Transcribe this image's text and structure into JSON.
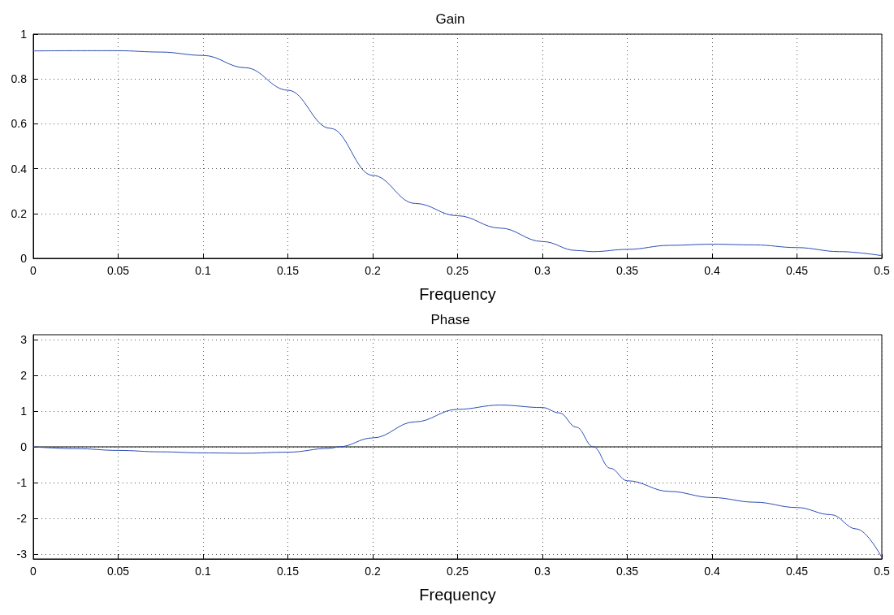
{
  "chart_data": [
    {
      "type": "line",
      "title": "Gain",
      "xlabel": "Frequency",
      "xlim": [
        0,
        0.5
      ],
      "xticks": [
        0,
        0.05,
        0.1,
        0.15,
        0.2,
        0.25,
        0.3,
        0.35,
        0.4,
        0.45,
        0.5
      ],
      "ylim": [
        0,
        1
      ],
      "yticks": [
        0,
        0.2,
        0.4,
        0.6,
        0.8,
        1
      ],
      "grid": true,
      "series": [
        {
          "color": "#2b4bb5",
          "x": [
            0,
            0.025,
            0.05,
            0.075,
            0.1,
            0.125,
            0.15,
            0.175,
            0.2,
            0.225,
            0.25,
            0.275,
            0.3,
            0.32,
            0.33,
            0.35,
            0.375,
            0.4,
            0.425,
            0.45,
            0.475,
            0.5
          ],
          "values": [
            0.925,
            0.926,
            0.926,
            0.92,
            0.905,
            0.85,
            0.75,
            0.58,
            0.37,
            0.245,
            0.19,
            0.135,
            0.075,
            0.035,
            0.03,
            0.04,
            0.058,
            0.063,
            0.06,
            0.048,
            0.03,
            0.012
          ]
        }
      ]
    },
    {
      "type": "line",
      "title": "Phase",
      "xlabel": "Frequency",
      "xlim": [
        0,
        0.5
      ],
      "xticks": [
        0,
        0.05,
        0.1,
        0.15,
        0.2,
        0.25,
        0.3,
        0.35,
        0.4,
        0.45,
        0.5
      ],
      "ylim": [
        -3.14,
        3.14
      ],
      "yticks": [
        -3,
        -2,
        -1,
        0,
        1,
        2,
        3
      ],
      "grid": true,
      "ref_lines": [
        {
          "axis": "y",
          "value": 0,
          "color": "#000000"
        }
      ],
      "series": [
        {
          "color": "#2b4bb5",
          "x": [
            0,
            0.025,
            0.05,
            0.075,
            0.1,
            0.125,
            0.15,
            0.175,
            0.18,
            0.2,
            0.225,
            0.25,
            0.275,
            0.3,
            0.31,
            0.32,
            0.33,
            0.34,
            0.35,
            0.375,
            0.4,
            0.425,
            0.45,
            0.47,
            0.485,
            0.5
          ],
          "values": [
            0,
            -0.05,
            -0.1,
            -0.14,
            -0.17,
            -0.18,
            -0.15,
            -0.04,
            0,
            0.25,
            0.7,
            1.05,
            1.17,
            1.1,
            0.95,
            0.55,
            0,
            -0.6,
            -0.95,
            -1.25,
            -1.42,
            -1.55,
            -1.7,
            -1.9,
            -2.3,
            -3.1
          ]
        }
      ]
    }
  ]
}
